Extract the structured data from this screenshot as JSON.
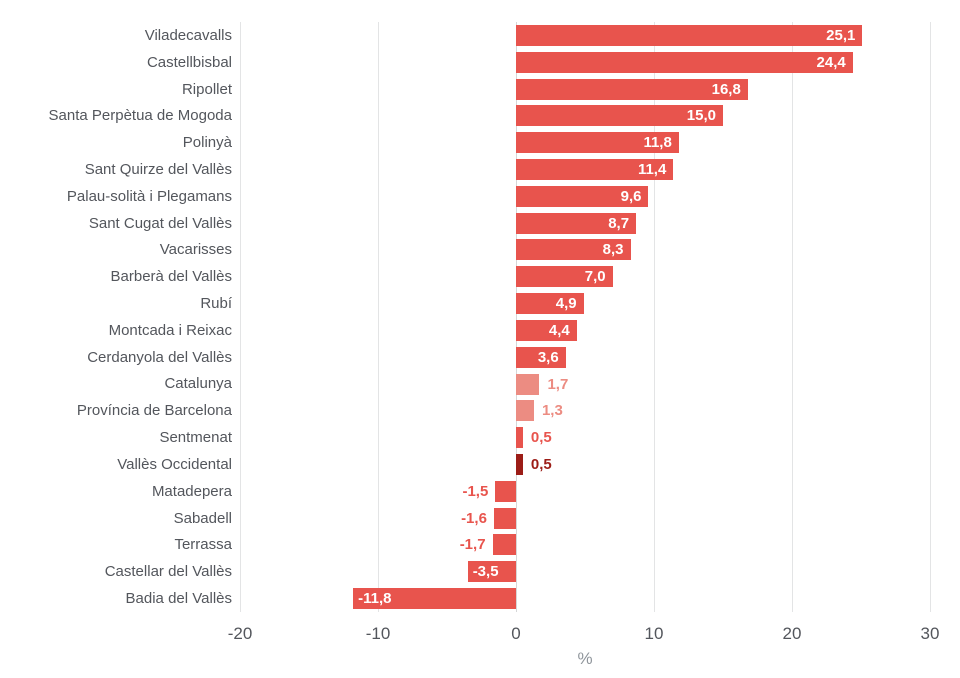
{
  "chart_data": {
    "type": "bar",
    "orientation": "horizontal",
    "title": "",
    "xlabel": "%",
    "ylabel": "",
    "xlim": [
      -20,
      30
    ],
    "x_ticks": [
      -20,
      -10,
      0,
      10,
      20,
      30
    ],
    "x_tick_labels": [
      "-20",
      "-10",
      "0",
      "10",
      "20",
      "30"
    ],
    "grid": true,
    "legend_position": "none",
    "decimal_separator": ",",
    "colors": {
      "bar_default": "#E8544D",
      "bar_light": "#EC8C82",
      "bar_dark": "#9C1D17",
      "grid": "#E3E4E5",
      "zero_line": "#D6D7D8",
      "axis_text": "#53565C",
      "xlabel_text": "#8F959B",
      "value_inside": "#FFFFFF"
    },
    "categories": [
      "Viladecavalls",
      "Castellbisbal",
      "Ripollet",
      "Santa Perpètua de Mogoda",
      "Polinyà",
      "Sant Quirze del Vallès",
      "Palau-solità i Plegamans",
      "Sant Cugat del Vallès",
      "Vacarisses",
      "Barberà del Vallès",
      "Rubí",
      "Montcada i Reixac",
      "Cerdanyola del Vallès",
      "Catalunya",
      "Província de Barcelona",
      "Sentmenat",
      "Vallès Occidental",
      "Matadepera",
      "Sabadell",
      "Terrassa",
      "Castellar del Vallès",
      "Badia del Vallès"
    ],
    "values": [
      25.1,
      24.4,
      16.8,
      15.0,
      11.8,
      11.4,
      9.6,
      8.7,
      8.3,
      7.0,
      4.9,
      4.4,
      3.6,
      1.7,
      1.3,
      0.5,
      0.5,
      -1.5,
      -1.6,
      -1.7,
      -3.5,
      -11.8
    ],
    "bars": [
      {
        "label": "Viladecavalls",
        "value": 25.1,
        "display": "25,1",
        "tone": "default",
        "label_inside": true
      },
      {
        "label": "Castellbisbal",
        "value": 24.4,
        "display": "24,4",
        "tone": "default",
        "label_inside": true
      },
      {
        "label": "Ripollet",
        "value": 16.8,
        "display": "16,8",
        "tone": "default",
        "label_inside": true
      },
      {
        "label": "Santa Perpètua de Mogoda",
        "value": 15.0,
        "display": "15,0",
        "tone": "default",
        "label_inside": true
      },
      {
        "label": "Polinyà",
        "value": 11.8,
        "display": "11,8",
        "tone": "default",
        "label_inside": true
      },
      {
        "label": "Sant Quirze del Vallès",
        "value": 11.4,
        "display": "11,4",
        "tone": "default",
        "label_inside": true
      },
      {
        "label": "Palau-solità i Plegamans",
        "value": 9.6,
        "display": "9,6",
        "tone": "default",
        "label_inside": true
      },
      {
        "label": "Sant Cugat del Vallès",
        "value": 8.7,
        "display": "8,7",
        "tone": "default",
        "label_inside": true
      },
      {
        "label": "Vacarisses",
        "value": 8.3,
        "display": "8,3",
        "tone": "default",
        "label_inside": true
      },
      {
        "label": "Barberà del Vallès",
        "value": 7.0,
        "display": "7,0",
        "tone": "default",
        "label_inside": true
      },
      {
        "label": "Rubí",
        "value": 4.9,
        "display": "4,9",
        "tone": "default",
        "label_inside": true
      },
      {
        "label": "Montcada i Reixac",
        "value": 4.4,
        "display": "4,4",
        "tone": "default",
        "label_inside": true
      },
      {
        "label": "Cerdanyola del Vallès",
        "value": 3.6,
        "display": "3,6",
        "tone": "default",
        "label_inside": true
      },
      {
        "label": "Catalunya",
        "value": 1.7,
        "display": "1,7",
        "tone": "light",
        "label_inside": false
      },
      {
        "label": "Província de Barcelona",
        "value": 1.3,
        "display": "1,3",
        "tone": "light",
        "label_inside": false
      },
      {
        "label": "Sentmenat",
        "value": 0.5,
        "display": "0,5",
        "tone": "default",
        "label_inside": false
      },
      {
        "label": "Vallès Occidental",
        "value": 0.5,
        "display": "0,5",
        "tone": "dark",
        "label_inside": false
      },
      {
        "label": "Matadepera",
        "value": -1.5,
        "display": "-1,5",
        "tone": "default",
        "label_inside": false
      },
      {
        "label": "Sabadell",
        "value": -1.6,
        "display": "-1,6",
        "tone": "default",
        "label_inside": false
      },
      {
        "label": "Terrassa",
        "value": -1.7,
        "display": "-1,7",
        "tone": "default",
        "label_inside": false
      },
      {
        "label": "Castellar del Vallès",
        "value": -3.5,
        "display": "-3,5",
        "tone": "default",
        "label_inside": true
      },
      {
        "label": "Badia del Vallès",
        "value": -11.8,
        "display": "-11,8",
        "tone": "default",
        "label_inside": true
      }
    ]
  }
}
